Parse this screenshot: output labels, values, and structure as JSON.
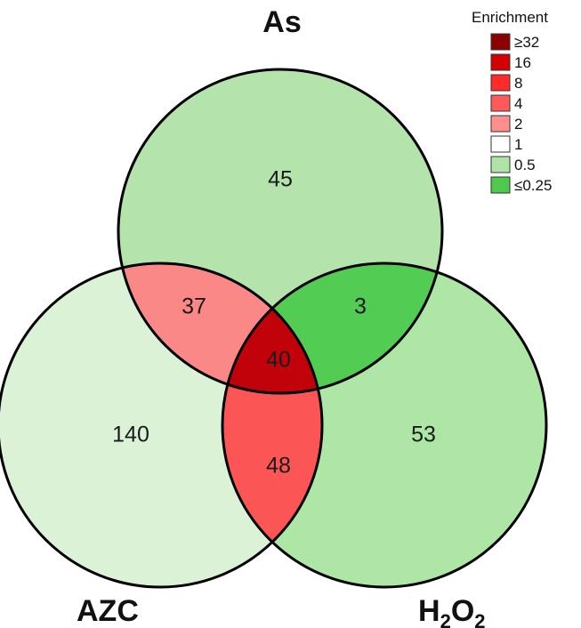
{
  "sets": {
    "as": "As",
    "azc": "AZC",
    "h2o2": {
      "main": "H",
      "sub1": "2",
      "mid": "O",
      "sub2": "2"
    }
  },
  "regions": {
    "as_only": "45",
    "azc_only": "140",
    "h2o2_only": "53",
    "as_azc": "37",
    "as_h2o2": "3",
    "azc_h2o2": "48",
    "all": "40"
  },
  "region_colors": {
    "as_only": "#b4e3ac",
    "azc_only": "#dcf2d6",
    "h2o2_only": "#ade6a5",
    "as_azc": "#f98887",
    "as_h2o2": "#52cc52",
    "azc_h2o2": "#fb5555",
    "all": "#c2020a"
  },
  "legend": {
    "title": "Enrichment",
    "items": [
      {
        "label": "≥32",
        "color": "#8b0000"
      },
      {
        "label": "16",
        "color": "#d40000"
      },
      {
        "label": "8",
        "color": "#ff2a2a"
      },
      {
        "label": "4",
        "color": "#ff5a5a"
      },
      {
        "label": "2",
        "color": "#ff8e8e"
      },
      {
        "label": "1",
        "color": "#ffffff"
      },
      {
        "label": "0.5",
        "color": "#afe3a8"
      },
      {
        "label": "≤0.25",
        "color": "#4ec94e"
      }
    ]
  }
}
